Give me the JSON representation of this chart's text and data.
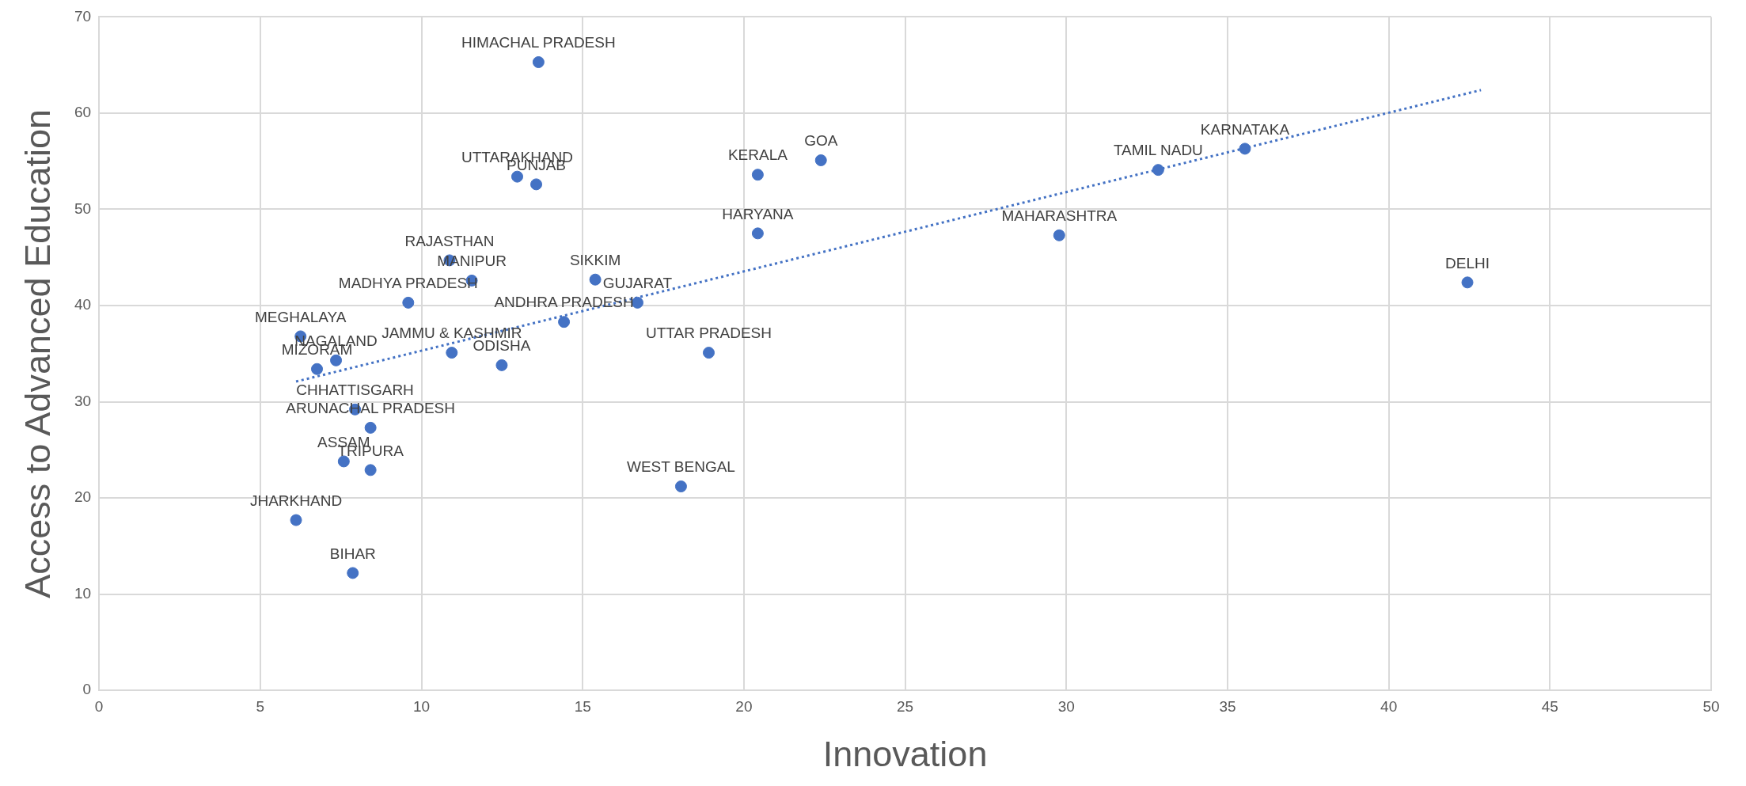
{
  "chart_data": {
    "type": "scatter",
    "xlabel": "Innovation",
    "ylabel": "Access to Advanced Education",
    "xlim": [
      0,
      50
    ],
    "xticks": [
      0,
      5,
      10,
      15,
      20,
      25,
      30,
      35,
      40,
      45,
      50
    ],
    "ylim": [
      0,
      70
    ],
    "yticks": [
      0,
      10,
      20,
      30,
      40,
      50,
      60,
      70
    ],
    "grid": true,
    "legend": false,
    "series": [
      {
        "color": "#4472c4",
        "marker": "circle",
        "x": [
          13.63,
          35.54,
          32.85,
          22.39,
          20.43,
          12.97,
          13.56,
          20.43,
          29.78,
          42.44,
          10.87,
          11.56,
          9.59,
          15.39,
          16.7,
          14.42,
          6.25,
          10.94,
          18.91,
          7.35,
          12.49,
          6.76,
          7.94,
          8.42,
          7.59,
          8.42,
          18.05,
          6.11,
          7.87
        ],
        "values": [
          65.3,
          56.3,
          54.1,
          55.1,
          53.6,
          53.4,
          52.6,
          47.5,
          47.3,
          42.4,
          44.7,
          42.6,
          40.3,
          42.7,
          40.3,
          38.3,
          36.8,
          35.1,
          35.1,
          34.3,
          33.8,
          33.4,
          29.2,
          27.3,
          23.8,
          22.9,
          21.2,
          17.7,
          12.2
        ]
      },
      {
        "type": "line",
        "color": "#4472c4",
        "marker": "none",
        "line_style": "dotted",
        "x": [
          6.11,
          42.86
        ],
        "values": [
          32.1,
          62.4
        ]
      }
    ],
    "annotations": [
      {
        "text": "HIMACHAL PRADESH",
        "x": 13.63,
        "y": 65.3
      },
      {
        "text": "KARNATAKA",
        "x": 35.54,
        "y": 56.3
      },
      {
        "text": "TAMIL NADU",
        "x": 32.85,
        "y": 54.1
      },
      {
        "text": "GOA",
        "x": 22.39,
        "y": 55.1
      },
      {
        "text": "KERALA",
        "x": 20.43,
        "y": 53.6
      },
      {
        "text": "UTTARAKHAND",
        "x": 12.97,
        "y": 53.4
      },
      {
        "text": "PUNJAB",
        "x": 13.56,
        "y": 52.6
      },
      {
        "text": "HARYANA",
        "x": 20.43,
        "y": 47.5
      },
      {
        "text": "MAHARASHTRA",
        "x": 29.78,
        "y": 47.3
      },
      {
        "text": "DELHI",
        "x": 42.44,
        "y": 42.4
      },
      {
        "text": "RAJASTHAN",
        "x": 10.87,
        "y": 44.7
      },
      {
        "text": "MANIPUR",
        "x": 11.56,
        "y": 42.6
      },
      {
        "text": "MADHYA PRADESH",
        "x": 9.59,
        "y": 40.3
      },
      {
        "text": "SIKKIM",
        "x": 15.39,
        "y": 42.7
      },
      {
        "text": "GUJARAT",
        "x": 16.7,
        "y": 40.3
      },
      {
        "text": "ANDHRA PRADESH",
        "x": 14.42,
        "y": 38.3
      },
      {
        "text": "MEGHALAYA",
        "x": 6.25,
        "y": 36.8
      },
      {
        "text": "JAMMU & KASHMIR",
        "x": 10.94,
        "y": 35.1
      },
      {
        "text": "UTTAR PRADESH",
        "x": 18.91,
        "y": 35.1
      },
      {
        "text": "NAGALAND",
        "x": 7.35,
        "y": 34.3
      },
      {
        "text": "ODISHA",
        "x": 12.49,
        "y": 33.8
      },
      {
        "text": "MIZORAM",
        "x": 6.76,
        "y": 33.4
      },
      {
        "text": "CHHATTISGARH",
        "x": 7.94,
        "y": 29.2
      },
      {
        "text": "ARUNACHAL PRADESH",
        "x": 8.42,
        "y": 27.3
      },
      {
        "text": "ASSAM",
        "x": 7.59,
        "y": 23.8
      },
      {
        "text": "TRIPURA",
        "x": 8.42,
        "y": 22.9
      },
      {
        "text": "WEST BENGAL",
        "x": 18.05,
        "y": 21.2
      },
      {
        "text": "JHARKHAND",
        "x": 6.11,
        "y": 17.7
      },
      {
        "text": "BIHAR",
        "x": 7.87,
        "y": 12.2
      }
    ]
  }
}
